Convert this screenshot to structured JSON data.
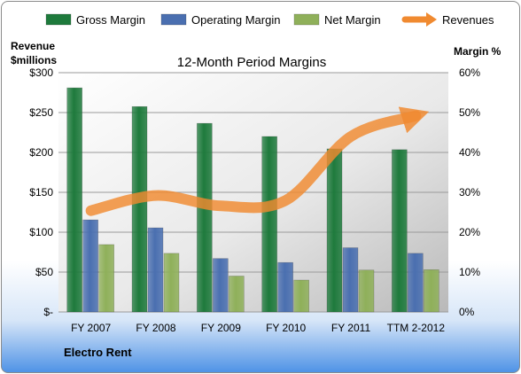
{
  "chart_data": {
    "type": "bar",
    "title": "12-Month Period Margins",
    "categories": [
      "FY 2007",
      "FY 2008",
      "FY 2009",
      "FY 2010",
      "FY 2011",
      "TTM 2-2012"
    ],
    "y_left": {
      "label_line1": "Revenue",
      "label_line2": "$millions",
      "ticks": [
        "$-",
        "$50",
        "$100",
        "$150",
        "$200",
        "$250",
        "$300"
      ],
      "range": [
        0,
        300
      ]
    },
    "y_right": {
      "label": "Margin %",
      "ticks": [
        "0%",
        "10%",
        "20%",
        "30%",
        "40%",
        "50%",
        "60%"
      ],
      "range": [
        0,
        60
      ]
    },
    "series": [
      {
        "name": "Gross Margin",
        "kind": "bar",
        "axis": "right",
        "color": "#1e7a3c",
        "values": [
          56.2,
          51.5,
          47.3,
          44.0,
          40.9,
          40.7
        ]
      },
      {
        "name": "Operating Margin",
        "kind": "bar",
        "axis": "right",
        "color": "#4a6fb0",
        "values": [
          23.1,
          21.1,
          13.4,
          12.4,
          16.1,
          14.7
        ]
      },
      {
        "name": "Net Margin",
        "kind": "bar",
        "axis": "right",
        "color": "#8fb05a",
        "values": [
          16.9,
          14.7,
          9.0,
          8.0,
          10.5,
          10.6
        ]
      },
      {
        "name": "Revenues",
        "kind": "line",
        "axis": "left",
        "color": "#f08a30",
        "values": [
          127,
          146,
          133,
          140,
          220,
          246
        ]
      }
    ],
    "legend_position": "top",
    "grid": true
  },
  "footer": {
    "company": "Electro Rent"
  }
}
